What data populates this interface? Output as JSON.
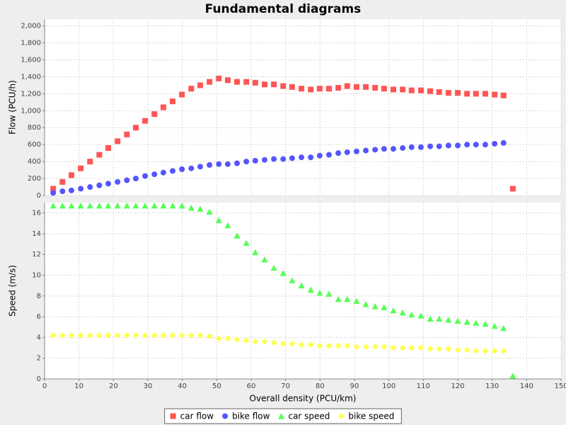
{
  "chart_data": {
    "type": "scatter",
    "title": "Fundamental diagrams",
    "xlabel": "Overall density (PCU/km)",
    "xlim": [
      0,
      150
    ],
    "xticks": [
      0,
      10,
      20,
      30,
      40,
      50,
      60,
      70,
      80,
      90,
      100,
      110,
      120,
      130,
      140,
      150
    ],
    "grid": true,
    "legend": "bottom",
    "panels": [
      {
        "ylabel": "Flow (PCU/h)",
        "ylim": [
          0,
          2080
        ],
        "yticks": [
          0,
          200,
          400,
          600,
          800,
          {
            "value": 1000,
            "label": "1,000"
          },
          {
            "value": 1200,
            "label": "1,200"
          },
          {
            "value": 1400,
            "label": "1,400"
          },
          {
            "value": 1600,
            "label": "1,600"
          },
          {
            "value": 1800,
            "label": "1,800"
          },
          {
            "value": 2000,
            "label": "2,000"
          }
        ],
        "series": [
          {
            "name": "car flow",
            "color": "#ff5555",
            "marker": "square",
            "x": [
              2.5,
              5.2,
              7.8,
              10.5,
              13.2,
              15.9,
              18.5,
              21.2,
              23.9,
              26.5,
              29.2,
              31.9,
              34.5,
              37.2,
              39.9,
              42.6,
              45.2,
              47.9,
              50.6,
              53.2,
              55.9,
              58.6,
              61.2,
              63.9,
              66.6,
              69.3,
              71.9,
              74.6,
              77.3,
              79.9,
              82.6,
              85.3,
              87.9,
              90.6,
              93.3,
              96.0,
              98.6,
              101.3,
              104.0,
              106.6,
              109.3,
              112.0,
              114.6,
              117.3,
              120.0,
              122.7,
              125.3,
              128.0,
              130.7,
              133.3,
              136.0
            ],
            "values": [
              80,
              160,
              240,
              320,
              400,
              480,
              560,
              640,
              720,
              800,
              880,
              960,
              1040,
              1110,
              1190,
              1260,
              1300,
              1340,
              1380,
              1360,
              1340,
              1340,
              1330,
              1310,
              1310,
              1290,
              1280,
              1260,
              1250,
              1260,
              1260,
              1270,
              1290,
              1280,
              1280,
              1270,
              1260,
              1250,
              1250,
              1240,
              1240,
              1230,
              1220,
              1210,
              1210,
              1200,
              1200,
              1200,
              1190,
              1180,
              80
            ]
          },
          {
            "name": "bike flow",
            "color": "#5555ff",
            "marker": "circle",
            "x": [
              2.5,
              5.2,
              7.8,
              10.5,
              13.2,
              15.9,
              18.5,
              21.2,
              23.9,
              26.5,
              29.2,
              31.9,
              34.5,
              37.2,
              39.9,
              42.6,
              45.2,
              47.9,
              50.6,
              53.2,
              55.9,
              58.6,
              61.2,
              63.9,
              66.6,
              69.3,
              71.9,
              74.6,
              77.3,
              79.9,
              82.6,
              85.3,
              87.9,
              90.6,
              93.3,
              96.0,
              98.6,
              101.3,
              104.0,
              106.6,
              109.3,
              112.0,
              114.6,
              117.3,
              120.0,
              122.7,
              125.3,
              128.0,
              130.7,
              133.3
            ],
            "values": [
              30,
              50,
              60,
              80,
              100,
              120,
              140,
              160,
              180,
              200,
              230,
              250,
              270,
              290,
              310,
              320,
              340,
              360,
              370,
              370,
              380,
              400,
              410,
              420,
              430,
              430,
              440,
              450,
              450,
              470,
              480,
              500,
              510,
              520,
              530,
              540,
              550,
              550,
              560,
              570,
              570,
              580,
              580,
              590,
              590,
              600,
              600,
              600,
              610,
              620
            ]
          }
        ]
      },
      {
        "ylabel": "Speed (m/s)",
        "ylim": [
          0,
          17
        ],
        "yticks": [
          0,
          2,
          4,
          6,
          8,
          10,
          12,
          14,
          16
        ],
        "series": [
          {
            "name": "car speed",
            "color": "#55ff55",
            "marker": "triangle",
            "x": [
              2.5,
              5.2,
              7.8,
              10.5,
              13.2,
              15.9,
              18.5,
              21.2,
              23.9,
              26.5,
              29.2,
              31.9,
              34.5,
              37.2,
              39.9,
              42.6,
              45.2,
              47.9,
              50.6,
              53.2,
              55.9,
              58.6,
              61.2,
              63.9,
              66.6,
              69.3,
              71.9,
              74.6,
              77.3,
              79.9,
              82.6,
              85.3,
              87.9,
              90.6,
              93.3,
              96.0,
              98.6,
              101.3,
              104.0,
              106.6,
              109.3,
              112.0,
              114.6,
              117.3,
              120.0,
              122.7,
              125.3,
              128.0,
              130.7,
              133.3,
              136.0
            ],
            "values": [
              16.7,
              16.7,
              16.7,
              16.7,
              16.7,
              16.7,
              16.7,
              16.7,
              16.7,
              16.7,
              16.7,
              16.7,
              16.7,
              16.7,
              16.7,
              16.5,
              16.4,
              16.1,
              15.3,
              14.8,
              13.8,
              13.1,
              12.2,
              11.5,
              10.7,
              10.2,
              9.5,
              9.0,
              8.6,
              8.3,
              8.2,
              7.7,
              7.7,
              7.5,
              7.2,
              7.0,
              6.9,
              6.6,
              6.4,
              6.2,
              6.1,
              5.8,
              5.8,
              5.7,
              5.6,
              5.5,
              5.4,
              5.3,
              5.1,
              4.9,
              0.3
            ]
          },
          {
            "name": "bike speed",
            "color": "#ffff55",
            "marker": "diamond",
            "x": [
              2.5,
              5.2,
              7.8,
              10.5,
              13.2,
              15.9,
              18.5,
              21.2,
              23.9,
              26.5,
              29.2,
              31.9,
              34.5,
              37.2,
              39.9,
              42.6,
              45.2,
              47.9,
              50.6,
              53.2,
              55.9,
              58.6,
              61.2,
              63.9,
              66.6,
              69.3,
              71.9,
              74.6,
              77.3,
              79.9,
              82.6,
              85.3,
              87.9,
              90.6,
              93.3,
              96.0,
              98.6,
              101.3,
              104.0,
              106.6,
              109.3,
              112.0,
              114.6,
              117.3,
              120.0,
              122.7,
              125.3,
              128.0,
              130.7,
              133.3
            ],
            "values": [
              4.2,
              4.2,
              4.2,
              4.2,
              4.2,
              4.2,
              4.2,
              4.2,
              4.2,
              4.2,
              4.2,
              4.2,
              4.2,
              4.2,
              4.2,
              4.2,
              4.2,
              4.1,
              3.9,
              3.9,
              3.8,
              3.7,
              3.6,
              3.6,
              3.5,
              3.4,
              3.4,
              3.3,
              3.3,
              3.2,
              3.2,
              3.2,
              3.2,
              3.1,
              3.1,
              3.1,
              3.1,
              3.0,
              3.0,
              3.0,
              3.0,
              2.9,
              2.9,
              2.9,
              2.8,
              2.8,
              2.7,
              2.7,
              2.7,
              2.7
            ]
          }
        ]
      }
    ]
  }
}
